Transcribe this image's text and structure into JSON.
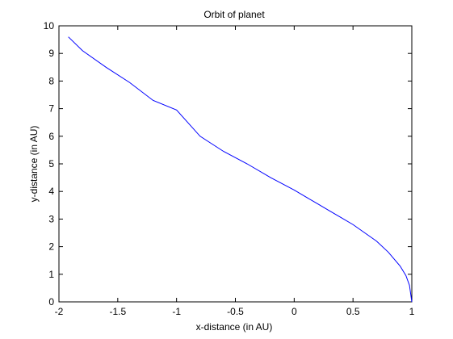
{
  "chart_data": {
    "type": "line",
    "title": "Orbit of planet",
    "xlabel": "x-distance (in AU)",
    "ylabel": "y-distance (in AU)",
    "xlim": [
      -2,
      1
    ],
    "ylim": [
      0,
      10
    ],
    "x_ticks": [
      -2,
      -1.5,
      -1,
      -0.5,
      0,
      0.5,
      1
    ],
    "x_tick_labels": [
      "-2",
      "-1.5",
      "-1",
      "-0.5",
      "0",
      "0.5",
      "1"
    ],
    "y_ticks": [
      0,
      1,
      2,
      3,
      4,
      5,
      6,
      7,
      8,
      9,
      10
    ],
    "y_tick_labels": [
      "0",
      "1",
      "2",
      "3",
      "4",
      "5",
      "6",
      "7",
      "8",
      "9",
      "10"
    ],
    "grid": false,
    "series": [
      {
        "color": "#0000ff",
        "x": [
          1.0,
          0.98,
          0.95,
          0.9,
          0.8,
          0.7,
          0.6,
          0.5,
          0.4,
          0.3,
          0.2,
          0.1,
          0.0,
          -0.2,
          -0.4,
          -0.6,
          -0.8,
          -1.0,
          -1.2,
          -1.4,
          -1.6,
          -1.8,
          -1.92
        ],
        "y": [
          0.0,
          0.6,
          0.95,
          1.3,
          1.8,
          2.2,
          2.5,
          2.8,
          3.05,
          3.3,
          3.55,
          3.8,
          4.05,
          4.5,
          5.0,
          5.45,
          6.0,
          6.95,
          7.3,
          7.95,
          8.5,
          9.1,
          9.6
        ]
      }
    ]
  }
}
